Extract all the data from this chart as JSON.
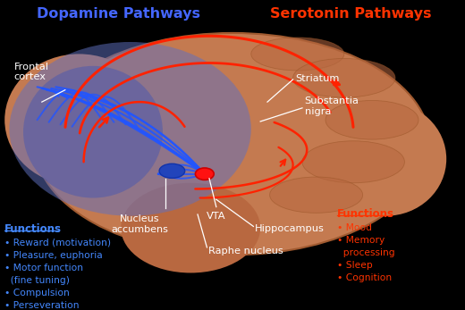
{
  "bg_color": "#000000",
  "title_dopamine": "Dopamine Pathways",
  "title_serotonin": "Serotonin Pathways",
  "title_dopamine_color": "#4466ff",
  "title_serotonin_color": "#ff3300",
  "label_color_white": "#ffffff",
  "label_color_blue": "#4488ff",
  "label_color_red": "#ff3300",
  "dopamine_functions_title": "Functions",
  "dopamine_functions": [
    "Reward (motivation)",
    "Pleasure, euphoria",
    "Motor function",
    "(fine tuning)",
    "Compulsion",
    "Perseveration"
  ],
  "serotonin_functions_title": "Functions",
  "serotonin_functions": [
    "Mood",
    "Memory",
    "processing",
    "Sleep",
    "Cognition"
  ],
  "brain_main_fc": "#c47a50",
  "brain_main_ec": "#a05a30",
  "blue_region_fc": "#6070c0",
  "vta_dot_fc": "#ff1111",
  "vta_dot_ec": "#cc0000",
  "nucleus_dot_fc": "#2244bb",
  "red_path_color": "#ff2200",
  "blue_path_color": "#2255ff"
}
